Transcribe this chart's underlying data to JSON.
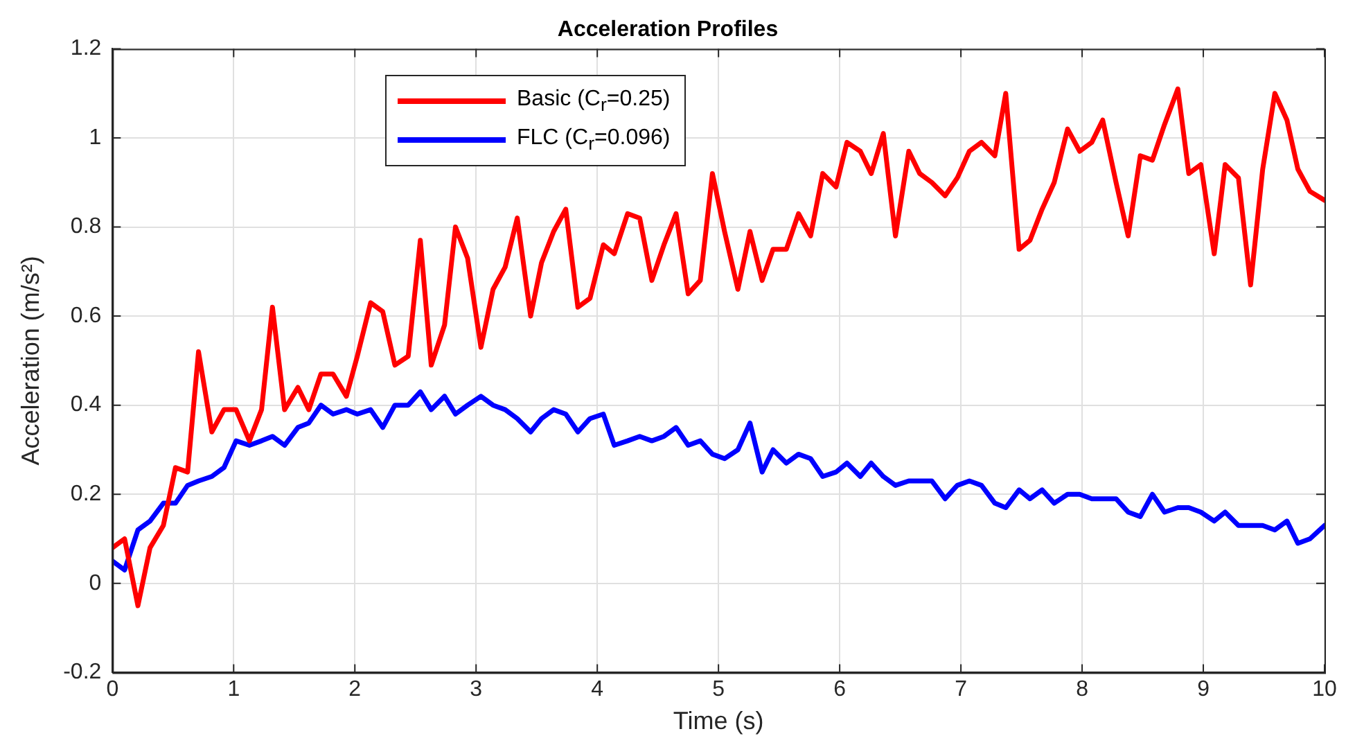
{
  "chart_data": {
    "type": "line",
    "title": "Acceleration Profiles",
    "xlabel": "Time (s)",
    "ylabel": "Acceleration (m/s²)",
    "x": [
      0,
      0.1,
      0.21,
      0.31,
      0.42,
      0.52,
      0.62,
      0.71,
      0.82,
      0.92,
      1.02,
      1.13,
      1.23,
      1.32,
      1.42,
      1.53,
      1.62,
      1.72,
      1.82,
      1.93,
      2.02,
      2.13,
      2.23,
      2.33,
      2.44,
      2.54,
      2.63,
      2.74,
      2.83,
      2.93,
      3.04,
      3.14,
      3.24,
      3.34,
      3.45,
      3.54,
      3.64,
      3.74,
      3.84,
      3.94,
      4.05,
      4.14,
      4.25,
      4.35,
      4.45,
      4.55,
      4.65,
      4.75,
      4.85,
      4.95,
      5.05,
      5.16,
      5.26,
      5.36,
      5.45,
      5.56,
      5.66,
      5.76,
      5.86,
      5.97,
      6.06,
      6.17,
      6.26,
      6.36,
      6.46,
      6.57,
      6.66,
      6.76,
      6.87,
      6.97,
      7.07,
      7.17,
      7.28,
      7.37,
      7.48,
      7.57,
      7.67,
      7.77,
      7.88,
      7.98,
      8.08,
      8.17,
      8.28,
      8.38,
      8.48,
      8.58,
      8.68,
      8.79,
      8.88,
      8.98,
      9.09,
      9.18,
      9.29,
      9.39,
      9.49,
      9.59,
      9.69,
      9.78,
      9.88,
      10
    ],
    "series": [
      {
        "name": "Basic (C$_{r}$=0.25)",
        "color": "#ff0000",
        "values": [
          0.08,
          0.1,
          -0.05,
          0.08,
          0.13,
          0.26,
          0.25,
          0.52,
          0.34,
          0.39,
          0.39,
          0.32,
          0.39,
          0.62,
          0.39,
          0.44,
          0.39,
          0.47,
          0.47,
          0.42,
          0.51,
          0.63,
          0.61,
          0.49,
          0.51,
          0.77,
          0.49,
          0.58,
          0.8,
          0.73,
          0.53,
          0.66,
          0.71,
          0.82,
          0.6,
          0.72,
          0.79,
          0.84,
          0.62,
          0.64,
          0.76,
          0.74,
          0.83,
          0.82,
          0.68,
          0.76,
          0.83,
          0.65,
          0.68,
          0.92,
          0.79,
          0.66,
          0.79,
          0.68,
          0.75,
          0.75,
          0.83,
          0.78,
          0.92,
          0.89,
          0.99,
          0.97,
          0.92,
          1.01,
          0.78,
          0.97,
          0.92,
          0.9,
          0.87,
          0.91,
          0.97,
          0.99,
          0.96,
          1.1,
          0.75,
          0.77,
          0.84,
          0.9,
          1.02,
          0.97,
          0.99,
          1.04,
          0.9,
          0.78,
          0.96,
          0.95,
          1.03,
          1.11,
          0.92,
          0.94,
          0.74,
          0.94,
          0.91,
          0.67,
          0.93,
          1.1,
          1.04,
          0.93,
          0.88,
          0.86
        ]
      },
      {
        "name": "FLC (C$_{r}$=0.096)",
        "color": "#0000ff",
        "values": [
          0.05,
          0.03,
          0.12,
          0.14,
          0.18,
          0.18,
          0.22,
          0.23,
          0.24,
          0.26,
          0.32,
          0.31,
          0.32,
          0.33,
          0.31,
          0.35,
          0.36,
          0.4,
          0.38,
          0.39,
          0.38,
          0.39,
          0.35,
          0.4,
          0.4,
          0.43,
          0.39,
          0.42,
          0.38,
          0.4,
          0.42,
          0.4,
          0.39,
          0.37,
          0.34,
          0.37,
          0.39,
          0.38,
          0.34,
          0.37,
          0.38,
          0.31,
          0.32,
          0.33,
          0.32,
          0.33,
          0.35,
          0.31,
          0.32,
          0.29,
          0.28,
          0.3,
          0.36,
          0.25,
          0.3,
          0.27,
          0.29,
          0.28,
          0.24,
          0.25,
          0.27,
          0.24,
          0.27,
          0.24,
          0.22,
          0.23,
          0.23,
          0.23,
          0.19,
          0.22,
          0.23,
          0.22,
          0.18,
          0.17,
          0.21,
          0.19,
          0.21,
          0.18,
          0.2,
          0.2,
          0.19,
          0.19,
          0.19,
          0.16,
          0.15,
          0.2,
          0.16,
          0.17,
          0.17,
          0.16,
          0.14,
          0.16,
          0.13,
          0.13,
          0.13,
          0.12,
          0.14,
          0.09,
          0.1,
          0.13
        ]
      }
    ],
    "xlim": [
      0,
      10
    ],
    "xticks": [
      0,
      1,
      2,
      3,
      4,
      5,
      6,
      7,
      8,
      9,
      10
    ],
    "ylim": [
      -0.2,
      1.2
    ],
    "yticks": [
      -0.2,
      0,
      0.2,
      0.4,
      0.6,
      0.8,
      1,
      1.2
    ],
    "grid": true,
    "legend": "top left",
    "marker": "none",
    "line_style": "solid"
  }
}
